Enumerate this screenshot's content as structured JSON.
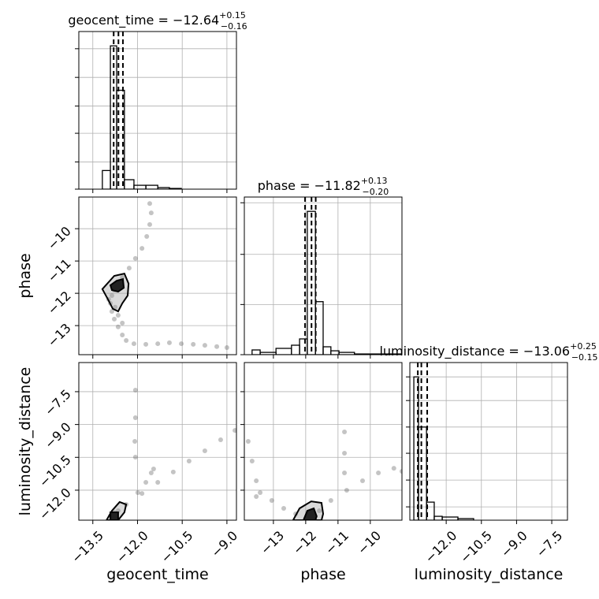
{
  "chart_data": [
    {
      "type": "histogram",
      "title": "geocent_time = −12.64",
      "title_upper": "+0.15",
      "title_lower": "−0.16",
      "color": "#000000",
      "bins": [
        -13.18,
        -12.91,
        -12.7,
        -12.44,
        -12.12,
        -11.72,
        -11.32,
        -10.93,
        -10.53
      ],
      "counts": [
        0.13,
        1.0,
        0.69,
        0.066,
        0.027,
        0.027,
        0.011,
        0.005
      ],
      "quantiles": [
        -12.8,
        -12.64,
        -12.49
      ],
      "xlim": [
        -13.97,
        -8.68
      ],
      "ylim": [
        0,
        1.1
      ],
      "xticks": [
        -13.5,
        -12,
        -10.5,
        -9
      ],
      "yticks": [
        0,
        0.19,
        0.39,
        0.58,
        0.78,
        0.98
      ],
      "grid": true
    },
    {
      "type": "scatter",
      "y_label": "phase",
      "color": "#555555",
      "contour_color": "#000000",
      "x": [
        -11.59,
        -11.54,
        -11.59,
        -11.69,
        -11.85,
        -12.07,
        -12.28,
        -12.51,
        -12.7,
        -12.78,
        -12.86,
        -12.91,
        -12.86,
        -12.78,
        -12.65,
        -12.51,
        -12.38,
        -12.12,
        -11.72,
        -11.32,
        -10.93,
        -10.53,
        -10.13,
        -9.74,
        -9.34,
        -9.0,
        -12.65,
        -12.51,
        -12.97,
        -12.75
      ],
      "y": [
        -9.22,
        -9.51,
        -9.87,
        -10.24,
        -10.61,
        -10.92,
        -11.22,
        -11.51,
        -11.75,
        -11.9,
        -12.07,
        -12.31,
        -12.56,
        -12.8,
        -13.04,
        -13.29,
        -13.46,
        -13.56,
        -13.58,
        -13.56,
        -13.53,
        -13.56,
        -13.58,
        -13.61,
        -13.65,
        -13.68,
        -12.68,
        -12.92,
        -12.19,
        -12.43
      ],
      "contours": [
        {
          "x": [
            -13.18,
            -12.78,
            -12.44,
            -12.3,
            -12.33,
            -12.51,
            -12.65,
            -12.83,
            -12.99
          ],
          "y": [
            -11.87,
            -11.46,
            -11.39,
            -11.7,
            -12.07,
            -12.31,
            -12.56,
            -12.48,
            -12.19
          ]
        },
        {
          "x": [
            -12.91,
            -12.7,
            -12.49,
            -12.46,
            -12.65,
            -12.86
          ],
          "y": [
            -11.75,
            -11.61,
            -11.56,
            -11.83,
            -11.95,
            -11.9
          ]
        }
      ],
      "xlim": [
        -13.97,
        -8.68
      ],
      "ylim": [
        -13.9,
        -9.02
      ],
      "xticks": [
        -13.5,
        -12,
        -10.5,
        -9
      ],
      "yticks": [
        {
          "value": -10,
          "label": "−10"
        },
        {
          "value": -11,
          "label": "−11"
        },
        {
          "value": -12,
          "label": "−12"
        },
        {
          "value": -13,
          "label": "−13"
        }
      ],
      "grid": true
    },
    {
      "type": "histogram",
      "title": "phase = −11.82",
      "title_upper": "+0.13",
      "title_lower": "−0.20",
      "color": "#000000",
      "bins": [
        -13.66,
        -13.41,
        -12.92,
        -12.44,
        -12.19,
        -11.95,
        -11.7,
        -11.46,
        -11.22,
        -10.97,
        -10.49,
        -9.02
      ],
      "counts": [
        0.033,
        0.016,
        0.044,
        0.066,
        0.11,
        1.0,
        0.37,
        0.055,
        0.027,
        0.016,
        0.005
      ],
      "quantiles": [
        -12.02,
        -11.82,
        -11.69
      ],
      "xlim": [
        -13.9,
        -9.02
      ],
      "ylim": [
        0,
        1.1
      ],
      "xticks": [
        -13,
        -12,
        -11,
        -10
      ],
      "yticks": [
        0,
        0.35,
        0.7,
        1.06
      ],
      "grid": true
    },
    {
      "type": "scatter",
      "x_label": "geocent_time",
      "y_label": "luminosity_distance",
      "color": "#555555",
      "contour_color": "#000000",
      "x": [
        -12.91,
        -12.78,
        -12.65,
        -12.38,
        -11.99,
        -11.72,
        -11.54,
        -11.46,
        -11.85,
        -11.32,
        -10.8,
        -10.27,
        -9.74,
        -9.21,
        -8.73,
        -12.07,
        -12.07,
        -12.09,
        -12.07
      ],
      "y": [
        -13.19,
        -13.01,
        -12.94,
        -12.65,
        -12.11,
        -11.64,
        -11.21,
        -11.03,
        -12.15,
        -11.64,
        -11.17,
        -10.67,
        -10.2,
        -9.7,
        -9.27,
        -7.43,
        -8.69,
        -9.77,
        -10.49
      ],
      "contours": [
        {
          "x": [
            -13.04,
            -12.86,
            -12.6,
            -12.38,
            -12.44,
            -12.65
          ],
          "y": [
            -13.37,
            -12.94,
            -12.54,
            -12.65,
            -13.01,
            -13.37
          ]
        },
        {
          "x": [
            -12.91,
            -12.91,
            -12.65,
            -12.65
          ],
          "y": [
            -13.37,
            -13.01,
            -13.01,
            -13.37
          ]
        }
      ],
      "xlim": [
        -13.97,
        -8.68
      ],
      "ylim": [
        -13.37,
        -6.17
      ],
      "xticks": [
        {
          "value": -13.5,
          "label": "−13.5"
        },
        {
          "value": -12,
          "label": "−12.0"
        },
        {
          "value": -10.5,
          "label": "−10.5"
        },
        {
          "value": -9,
          "label": "−9.0"
        }
      ],
      "yticks": [
        {
          "value": -7.5,
          "label": "−7.5"
        },
        {
          "value": -9,
          "label": "−9.0"
        },
        {
          "value": -10.5,
          "label": "−10.5"
        },
        {
          "value": -12,
          "label": "−12.0"
        }
      ],
      "grid": true
    },
    {
      "type": "scatter",
      "x_label": "phase",
      "color": "#555555",
      "contour_color": "#000000",
      "x": [
        -13.78,
        -13.66,
        -13.53,
        -13.41,
        -13.05,
        -12.68,
        -12.31,
        -11.95,
        -11.58,
        -11.22,
        -10.73,
        -10.24,
        -9.75,
        -9.27,
        -9.02,
        -10.8,
        -10.8,
        -10.8,
        -13.53
      ],
      "y": [
        -9.77,
        -10.67,
        -11.57,
        -12.11,
        -12.47,
        -12.83,
        -13.08,
        -13.19,
        -12.94,
        -12.47,
        -12.0,
        -11.57,
        -11.21,
        -11.0,
        -11.14,
        -9.34,
        -10.31,
        -11.21,
        -12.29
      ],
      "contours": [
        {
          "x": [
            -12.39,
            -12.19,
            -11.83,
            -11.51,
            -11.46,
            -11.51
          ],
          "y": [
            -13.37,
            -12.83,
            -12.51,
            -12.58,
            -13.08,
            -13.37
          ]
        },
        {
          "x": [
            -12.07,
            -11.95,
            -11.75,
            -11.66,
            -11.7
          ],
          "y": [
            -13.37,
            -12.94,
            -12.83,
            -13.19,
            -13.37
          ]
        }
      ],
      "xlim": [
        -13.9,
        -9.02
      ],
      "ylim": [
        -13.37,
        -6.17
      ],
      "xticks": [
        {
          "value": -13,
          "label": "−13"
        },
        {
          "value": -12,
          "label": "−12"
        },
        {
          "value": -11,
          "label": "−11"
        },
        {
          "value": -10,
          "label": "−10"
        }
      ],
      "yticks": [
        -7.5,
        -9,
        -10.5,
        -12
      ],
      "grid": true
    },
    {
      "type": "histogram",
      "title": "luminosity_distance = −13.06",
      "title_upper": "+0.25",
      "title_lower": "−0.15",
      "x_label": "luminosity_distance",
      "color": "#000000",
      "bins": [
        -13.38,
        -13.18,
        -12.84,
        -12.51,
        -12.17,
        -11.5,
        -10.83
      ],
      "counts": [
        1.0,
        0.65,
        0.126,
        0.027,
        0.022,
        0.011
      ],
      "quantiles": [
        -13.21,
        -13.06,
        -12.81
      ],
      "xlim": [
        -13.55,
        -6.83
      ],
      "ylim": [
        0,
        1.1
      ],
      "xticks": [
        {
          "value": -12,
          "label": "−12.0"
        },
        {
          "value": -10.5,
          "label": "−10.5"
        },
        {
          "value": -9,
          "label": "−9.0"
        },
        {
          "value": -7.5,
          "label": "−7.5"
        }
      ],
      "yticks": [
        0.093,
        0.28,
        0.467,
        0.65,
        0.835,
        1.0
      ],
      "grid": true
    }
  ]
}
